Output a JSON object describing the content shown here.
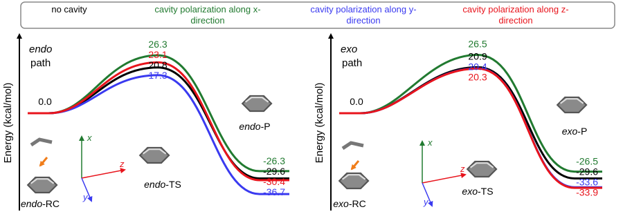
{
  "chart_data": [
    {
      "type": "line",
      "y_label": "Energy (kcal/mol)",
      "panel_label": [
        "endo",
        "path"
      ],
      "species_labels": [
        "endo-RC",
        "endo-TS",
        "endo-P"
      ],
      "coordinate_axes": [
        "x",
        "y",
        "z"
      ],
      "reactant": {
        "value": 0,
        "label": "0.0"
      },
      "ylim": [
        -42,
        32
      ],
      "series": [
        {
          "name": "no cavity",
          "color": "#000000",
          "values": [
            20.8,
            -29.6
          ]
        },
        {
          "name": "cavity polarization along x-direction",
          "color": "#217a30",
          "values": [
            26.3,
            -26.3
          ]
        },
        {
          "name": "cavity polarization along y-direction",
          "color": "#3a3af0",
          "values": [
            17.3,
            -36.7
          ]
        },
        {
          "name": "cavity polarization along z-direction",
          "color": "#e8141c",
          "values": [
            23.1,
            -30.4
          ]
        }
      ]
    },
    {
      "type": "line",
      "y_label": "Energy (kcal/mol)",
      "panel_label": [
        "exo",
        "path"
      ],
      "species_labels": [
        "exo-RC",
        "exo-TS",
        "exo-P"
      ],
      "coordinate_axes": [
        "x",
        "y",
        "z"
      ],
      "reactant": {
        "value": 0,
        "label": "0.0"
      },
      "ylim": [
        -42,
        32
      ],
      "series": [
        {
          "color": "#000000",
          "values": [
            20.9,
            -29.6
          ]
        },
        {
          "color": "#217a30",
          "values": [
            26.5,
            -26.5
          ]
        },
        {
          "color": "#3a3af0",
          "values": [
            20.4,
            -33.6
          ]
        },
        {
          "color": "#e8141c",
          "values": [
            20.3,
            -33.9
          ]
        }
      ]
    }
  ]
}
